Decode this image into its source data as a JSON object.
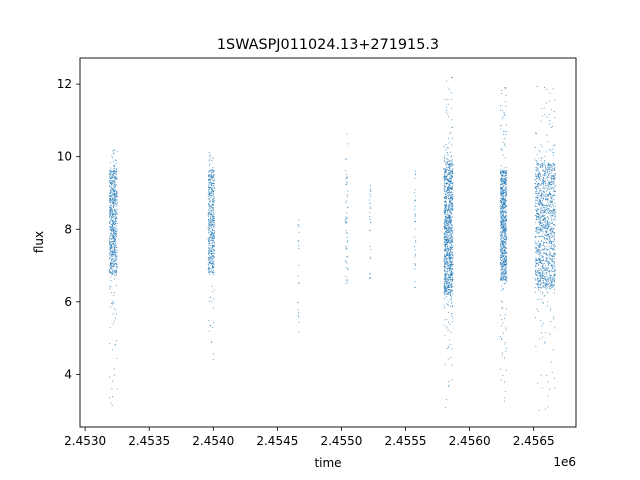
{
  "chart_data": {
    "type": "scatter",
    "title": "1SWASPJ011024.13+271915.3",
    "xlabel": "time",
    "ylabel": "flux",
    "x_offset_label": "1e6",
    "xlim": [
      2.45296,
      2.45683
    ],
    "ylim": [
      2.55,
      12.72
    ],
    "x_ticks": [
      2.453,
      2.4535,
      2.454,
      2.4545,
      2.455,
      2.4555,
      2.456,
      2.4565
    ],
    "x_tick_labels": [
      "2.4530",
      "2.4535",
      "2.4540",
      "2.4545",
      "2.4550",
      "2.4555",
      "2.4560",
      "2.4565"
    ],
    "y_ticks": [
      4,
      6,
      8,
      10,
      12
    ],
    "y_tick_labels": [
      "4",
      "6",
      "8",
      "10",
      "12"
    ],
    "grid": false,
    "marker_color": "#1f77b4",
    "series": [
      {
        "clusters": [
          {
            "x0": 2.45319,
            "x1": 2.45325,
            "y_low": 6.8,
            "y_high": 9.6,
            "tail_low": 3.0,
            "tail_high": 10.2,
            "density": 1.0
          },
          {
            "x0": 2.45396,
            "x1": 2.45401,
            "y_low": 6.8,
            "y_high": 9.6,
            "tail_low": 3.9,
            "tail_high": 10.2,
            "density": 0.7
          },
          {
            "x0": 2.45466,
            "x1": 2.45467,
            "y_low": 5.2,
            "y_high": 8.6,
            "tail_low": 5.1,
            "tail_high": 8.6,
            "density": 0.03
          },
          {
            "x0": 2.45503,
            "x1": 2.45505,
            "y_low": 6.5,
            "y_high": 9.8,
            "tail_low": 6.4,
            "tail_high": 10.7,
            "density": 0.08
          },
          {
            "x0": 2.45522,
            "x1": 2.45523,
            "y_low": 6.7,
            "y_high": 9.2,
            "tail_low": 6.6,
            "tail_high": 9.2,
            "density": 0.04
          },
          {
            "x0": 2.45557,
            "x1": 2.45558,
            "y_low": 6.4,
            "y_high": 9.6,
            "tail_low": 6.3,
            "tail_high": 9.6,
            "density": 0.05
          },
          {
            "x0": 2.4558,
            "x1": 2.45587,
            "y_low": 6.2,
            "y_high": 9.8,
            "tail_low": 3.0,
            "tail_high": 12.3,
            "density": 1.6
          },
          {
            "x0": 2.45624,
            "x1": 2.45629,
            "y_low": 6.6,
            "y_high": 9.6,
            "tail_low": 3.2,
            "tail_high": 12.0,
            "density": 1.2
          },
          {
            "x0": 2.45651,
            "x1": 2.45667,
            "y_low": 6.4,
            "y_high": 9.8,
            "tail_low": 3.0,
            "tail_high": 12.0,
            "density": 1.8
          }
        ]
      }
    ]
  }
}
